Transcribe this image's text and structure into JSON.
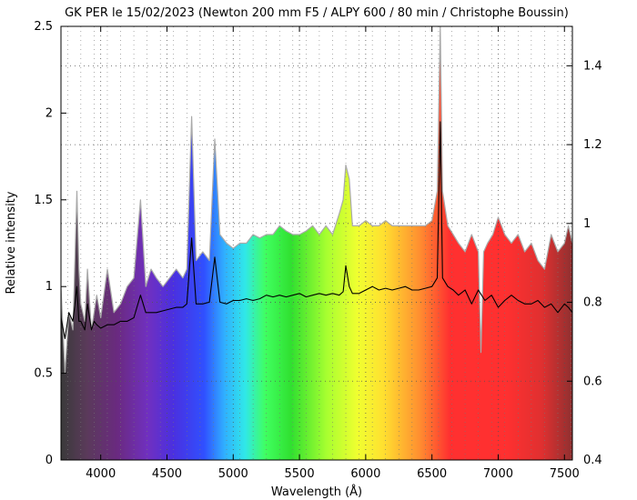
{
  "chart_data": {
    "type": "line",
    "title": "GK PER le 15/02/2023 (Newton 200 mm F5 / ALPY 600 / 80 min / Christophe Boussin)",
    "xlabel": "Wavelength (Å)",
    "ylabel": "Relative intensity",
    "xlim": [
      3700,
      7560
    ],
    "ylim": [
      0,
      2.5
    ],
    "y2lim": [
      0.4,
      1.5
    ],
    "x_ticks": [
      4000,
      4500,
      5000,
      5500,
      6000,
      6500,
      7000,
      7500
    ],
    "y_ticks": [
      0,
      0.5,
      1,
      1.5,
      2,
      2.5
    ],
    "y_tick_labels": [
      "0",
      "0.5",
      "1",
      "1.5",
      "2",
      "2.5"
    ],
    "y2_ticks": [
      0.4,
      0.6,
      0.8,
      1,
      1.2,
      1.4
    ],
    "y2_tick_labels": [
      "0.4",
      "0.6",
      "0.8",
      "1",
      "1.2",
      "1.4"
    ],
    "grid": true,
    "background": "rainbow spectrum gradient under the upper curve",
    "series": [
      {
        "axis": "left",
        "color": "#a9a9a9",
        "x": [
          3700,
          3730,
          3760,
          3790,
          3820,
          3835,
          3850,
          3880,
          3900,
          3930,
          3970,
          4000,
          4050,
          4100,
          4150,
          4200,
          4250,
          4300,
          4340,
          4380,
          4420,
          4470,
          4520,
          4570,
          4620,
          4650,
          4686,
          4720,
          4770,
          4820,
          4861,
          4900,
          4950,
          5000,
          5050,
          5100,
          5150,
          5200,
          5250,
          5300,
          5350,
          5400,
          5450,
          5500,
          5550,
          5600,
          5650,
          5700,
          5750,
          5800,
          5830,
          5850,
          5876,
          5900,
          5950,
          6000,
          6050,
          6100,
          6150,
          6200,
          6250,
          6300,
          6350,
          6400,
          6450,
          6500,
          6540,
          6563,
          6580,
          6620,
          6660,
          6700,
          6750,
          6800,
          6850,
          6870,
          6890,
          6920,
          6960,
          7000,
          7050,
          7100,
          7150,
          7200,
          7250,
          7300,
          7350,
          7400,
          7450,
          7500,
          7530,
          7560
        ],
        "y": [
          1.0,
          0.5,
          0.85,
          0.75,
          1.55,
          1.1,
          0.9,
          0.8,
          1.1,
          0.75,
          0.95,
          0.82,
          1.1,
          0.85,
          0.9,
          1.0,
          1.05,
          1.5,
          1.0,
          1.1,
          1.05,
          1.0,
          1.05,
          1.1,
          1.05,
          1.1,
          1.98,
          1.15,
          1.2,
          1.15,
          1.85,
          1.3,
          1.25,
          1.22,
          1.25,
          1.25,
          1.3,
          1.28,
          1.3,
          1.3,
          1.35,
          1.32,
          1.3,
          1.3,
          1.32,
          1.35,
          1.3,
          1.35,
          1.3,
          1.42,
          1.5,
          1.7,
          1.62,
          1.35,
          1.35,
          1.38,
          1.35,
          1.35,
          1.38,
          1.35,
          1.35,
          1.35,
          1.35,
          1.35,
          1.35,
          1.38,
          1.55,
          2.5,
          1.55,
          1.35,
          1.3,
          1.25,
          1.2,
          1.3,
          1.2,
          0.62,
          1.2,
          1.25,
          1.3,
          1.4,
          1.3,
          1.25,
          1.3,
          1.2,
          1.25,
          1.15,
          1.1,
          1.3,
          1.2,
          1.25,
          1.35,
          1.25
        ]
      },
      {
        "axis": "left",
        "color": "#000000",
        "x": [
          3700,
          3730,
          3760,
          3790,
          3820,
          3835,
          3850,
          3880,
          3900,
          3930,
          3950,
          3970,
          4000,
          4050,
          4100,
          4150,
          4200,
          4250,
          4300,
          4340,
          4380,
          4420,
          4470,
          4520,
          4570,
          4620,
          4650,
          4686,
          4720,
          4770,
          4820,
          4861,
          4900,
          4950,
          5000,
          5050,
          5100,
          5150,
          5200,
          5250,
          5300,
          5350,
          5400,
          5450,
          5500,
          5550,
          5600,
          5650,
          5700,
          5750,
          5800,
          5830,
          5850,
          5876,
          5900,
          5950,
          6000,
          6050,
          6100,
          6150,
          6200,
          6250,
          6300,
          6350,
          6400,
          6450,
          6500,
          6540,
          6563,
          6580,
          6620,
          6660,
          6700,
          6750,
          6800,
          6850,
          6900,
          6950,
          7000,
          7050,
          7100,
          7150,
          7200,
          7250,
          7300,
          7350,
          7400,
          7450,
          7500,
          7530,
          7560
        ],
        "y": [
          0.82,
          0.7,
          0.85,
          0.8,
          1.0,
          0.8,
          0.8,
          0.75,
          0.9,
          0.75,
          0.8,
          0.78,
          0.76,
          0.78,
          0.78,
          0.8,
          0.8,
          0.82,
          0.95,
          0.85,
          0.85,
          0.85,
          0.86,
          0.87,
          0.88,
          0.88,
          0.9,
          1.28,
          0.9,
          0.9,
          0.91,
          1.17,
          0.91,
          0.9,
          0.92,
          0.92,
          0.93,
          0.92,
          0.93,
          0.95,
          0.94,
          0.95,
          0.94,
          0.95,
          0.96,
          0.94,
          0.95,
          0.96,
          0.95,
          0.96,
          0.95,
          0.97,
          1.12,
          1.0,
          0.96,
          0.96,
          0.98,
          1.0,
          0.98,
          0.99,
          0.98,
          0.99,
          1.0,
          0.98,
          0.98,
          0.99,
          1.0,
          1.05,
          1.95,
          1.05,
          1.0,
          0.98,
          0.95,
          0.98,
          0.9,
          0.98,
          0.92,
          0.95,
          0.88,
          0.92,
          0.95,
          0.92,
          0.9,
          0.9,
          0.92,
          0.88,
          0.9,
          0.85,
          0.9,
          0.88,
          0.85
        ]
      }
    ]
  }
}
